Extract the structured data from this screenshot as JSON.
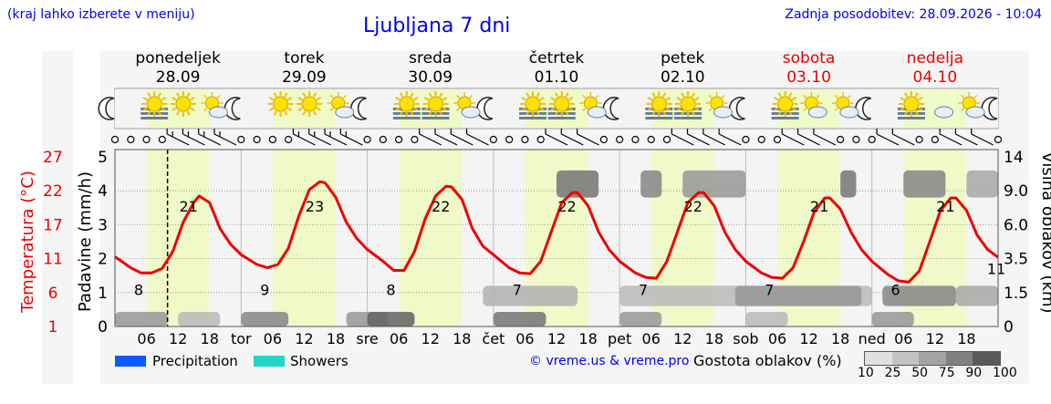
{
  "header": {
    "hint": "(kraj lahko izberete v meniju)",
    "title": "Ljubljana 7 dni",
    "updated": "Zadnja posodobitev: 28.09.2026 - 10:04"
  },
  "days": [
    {
      "name": "ponedeljek",
      "date": "28.09",
      "weekend": false,
      "abbr": "",
      "tmin": "8",
      "tmax": "21"
    },
    {
      "name": "torek",
      "date": "29.09",
      "weekend": false,
      "abbr": "tor",
      "tmin": "9",
      "tmax": "23"
    },
    {
      "name": "sreda",
      "date": "30.09",
      "weekend": false,
      "abbr": "sre",
      "tmin": "8",
      "tmax": "22"
    },
    {
      "name": "četrtek",
      "date": "01.10",
      "weekend": false,
      "abbr": "čet",
      "tmin": "7",
      "tmax": "22"
    },
    {
      "name": "petek",
      "date": "02.10",
      "weekend": false,
      "abbr": "pet",
      "tmin": "7",
      "tmax": "22"
    },
    {
      "name": "sobota",
      "date": "03.10",
      "weekend": true,
      "abbr": "sob",
      "tmin": "7",
      "tmax": "21"
    },
    {
      "name": "nedelja",
      "date": "04.10",
      "weekend": true,
      "abbr": "ned",
      "tmin": "6",
      "tmax": "21"
    }
  ],
  "hour_ticks": [
    "06",
    "12",
    "18"
  ],
  "end_label": "11",
  "legend": {
    "precipitation": "Precipitation",
    "showers": "Showers",
    "credit": "© vreme.us & vreme.pro",
    "density_title": "Gostota oblakov (%)",
    "density_ticks": [
      "10",
      "25",
      "50",
      "75",
      "90",
      "100"
    ],
    "precip_color": "#0a5cff",
    "showers_color": "#1fd6c8"
  },
  "chart_data": {
    "type": "line",
    "x_unit": "hours since 28.09 00:00",
    "xlim": [
      0,
      168
    ],
    "now_hour": 10,
    "axes": {
      "precip_label": "Padavine (mm/h)",
      "precip_ticks": [
        "0",
        "1",
        "2",
        "3",
        "4",
        "5"
      ],
      "temp_label": "Temperatura (°C)",
      "temp_ticks": [
        "1",
        "6",
        "11",
        "17",
        "22",
        "27"
      ],
      "cloud_label": "Višina oblakov (km)",
      "cloud_ticks": [
        "0",
        "1.5",
        "3.5",
        "6.0",
        "9.0",
        "14"
      ]
    },
    "series": [
      {
        "name": "Temperatura",
        "color": "#ee0000",
        "x": [
          0,
          3,
          5,
          7,
          9,
          11,
          13,
          15,
          16,
          18,
          20,
          22,
          24,
          27,
          29,
          31,
          33,
          35,
          37,
          39,
          40,
          42,
          44,
          46,
          48,
          51,
          53,
          55,
          57,
          59,
          61,
          63,
          64,
          66,
          68,
          70,
          72,
          75,
          77,
          79,
          81,
          83,
          85,
          87,
          88,
          90,
          92,
          94,
          96,
          99,
          101,
          103,
          105,
          107,
          109,
          111,
          112,
          114,
          116,
          118,
          120,
          123,
          125,
          127,
          129,
          131,
          133,
          135,
          136,
          138,
          140,
          142,
          144,
          147,
          149,
          151,
          153,
          155,
          157,
          159,
          160,
          162,
          164,
          166,
          168
        ],
        "y": [
          11.7,
          10,
          9.2,
          9.2,
          9.9,
          12.5,
          17,
          20,
          21,
          20,
          16,
          13.6,
          12,
          10.5,
          10,
          10.5,
          13,
          18,
          22,
          23.2,
          23,
          20.8,
          17,
          14.5,
          12.8,
          11,
          9.6,
          9.6,
          12.5,
          17.5,
          21,
          22.5,
          22.4,
          20.5,
          16,
          13.3,
          12,
          10,
          9.2,
          9.1,
          11,
          15.5,
          20,
          21.5,
          21.5,
          19.5,
          15.5,
          12.8,
          11,
          9.2,
          8.5,
          8.4,
          11,
          15.5,
          20,
          21.5,
          21.5,
          19.5,
          15.5,
          12.8,
          11,
          9.2,
          8.5,
          8.4,
          10,
          14,
          18.5,
          20.7,
          20.7,
          19,
          15.5,
          12.8,
          11,
          9,
          8,
          7.8,
          9.5,
          14,
          18.7,
          20.7,
          20.7,
          18.8,
          15,
          12.8,
          11.6
        ]
      }
    ],
    "icons": {
      "night": [
        0,
        24,
        48,
        72,
        96,
        120,
        144,
        168
      ],
      "day": [
        [
          "fog",
          "sun",
          "partly"
        ],
        [
          "sun",
          "sun",
          "partly"
        ],
        [
          "fog",
          "fog",
          "partly"
        ],
        [
          "fog",
          "fog",
          "partly"
        ],
        [
          "fog",
          "fog",
          "partly"
        ],
        [
          "fog",
          "partly",
          "partly"
        ],
        [
          "fog",
          "cloud",
          "partly"
        ]
      ]
    },
    "clouds": {
      "low": [
        [
          0,
          10,
          0.5
        ],
        [
          12,
          20,
          0.3
        ],
        [
          24,
          33,
          0.6
        ],
        [
          44,
          52,
          0.5
        ],
        [
          48,
          57,
          0.8
        ],
        [
          72,
          82,
          0.7
        ],
        [
          96,
          104,
          0.5
        ],
        [
          120,
          128,
          0.3
        ],
        [
          144,
          152,
          0.5
        ]
      ],
      "mid": [
        [
          70,
          88,
          0.35
        ],
        [
          96,
          144,
          0.3
        ],
        [
          118,
          142,
          0.5
        ],
        [
          146,
          160,
          0.6
        ],
        [
          160,
          168,
          0.4
        ]
      ],
      "high": [
        [
          84,
          92,
          0.7
        ],
        [
          100,
          104,
          0.6
        ],
        [
          108,
          120,
          0.5
        ],
        [
          138,
          141,
          0.7
        ],
        [
          150,
          158,
          0.6
        ],
        [
          162,
          168,
          0.4
        ]
      ]
    },
    "winds": [
      [
        0,
        0
      ],
      [
        3,
        0
      ],
      [
        6,
        0
      ],
      [
        9,
        0
      ],
      [
        12,
        2
      ],
      [
        15,
        2
      ],
      [
        18,
        2
      ],
      [
        21,
        2
      ],
      [
        24,
        0
      ],
      [
        27,
        0
      ],
      [
        30,
        0
      ],
      [
        33,
        0
      ],
      [
        36,
        2
      ],
      [
        39,
        2
      ],
      [
        42,
        2
      ],
      [
        45,
        2
      ],
      [
        48,
        0
      ],
      [
        51,
        0
      ],
      [
        54,
        0
      ],
      [
        57,
        0
      ],
      [
        60,
        1
      ],
      [
        63,
        1
      ],
      [
        66,
        1
      ],
      [
        69,
        1
      ],
      [
        72,
        0
      ],
      [
        75,
        0
      ],
      [
        78,
        0
      ],
      [
        81,
        0
      ],
      [
        84,
        1
      ],
      [
        87,
        1
      ],
      [
        90,
        1
      ],
      [
        93,
        0
      ],
      [
        96,
        0
      ],
      [
        99,
        0
      ],
      [
        102,
        0
      ],
      [
        105,
        0
      ],
      [
        108,
        1
      ],
      [
        111,
        1
      ],
      [
        114,
        1
      ],
      [
        117,
        1
      ],
      [
        120,
        0
      ],
      [
        123,
        0
      ],
      [
        126,
        0
      ],
      [
        129,
        1
      ],
      [
        132,
        1
      ],
      [
        135,
        1
      ],
      [
        138,
        0
      ],
      [
        141,
        0
      ],
      [
        144,
        0
      ],
      [
        147,
        1
      ],
      [
        150,
        1
      ],
      [
        153,
        0
      ],
      [
        156,
        0
      ],
      [
        159,
        1
      ],
      [
        162,
        1
      ],
      [
        165,
        1
      ],
      [
        168,
        0
      ]
    ]
  }
}
